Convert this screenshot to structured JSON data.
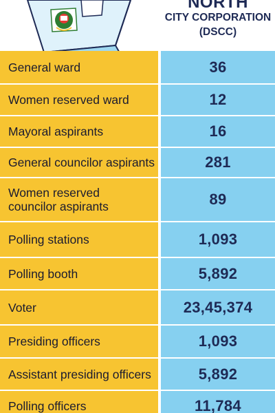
{
  "header": {
    "title_top": "NORTH",
    "title_mid": "CITY CORPORATION",
    "title_bot": "(DSCC)"
  },
  "colors": {
    "label_bg": "#f7c431",
    "value_bg": "#86d0f0",
    "text_dark": "#1e2a55"
  },
  "chart_data": {
    "type": "table",
    "columns": [
      "",
      "NORTH CITY CORPORATION (DSCC)"
    ],
    "rows": [
      {
        "label": "General ward",
        "value": "36"
      },
      {
        "label": "Women reserved ward",
        "value": "12"
      },
      {
        "label": "Mayoral aspirants",
        "value": "16"
      },
      {
        "label": "General councilor aspirants",
        "value": "281"
      },
      {
        "label": "Women reserved councilor aspirants",
        "value": "89"
      },
      {
        "label": "Polling stations",
        "value": "1,093"
      },
      {
        "label": "Polling booth",
        "value": "5,892"
      },
      {
        "label": "Voter",
        "value": "23,45,374"
      },
      {
        "label": "Presiding officers",
        "value": "1,093"
      },
      {
        "label": "Assistant presiding officers",
        "value": "5,892"
      },
      {
        "label": "Polling officers",
        "value": "11,784"
      }
    ]
  }
}
